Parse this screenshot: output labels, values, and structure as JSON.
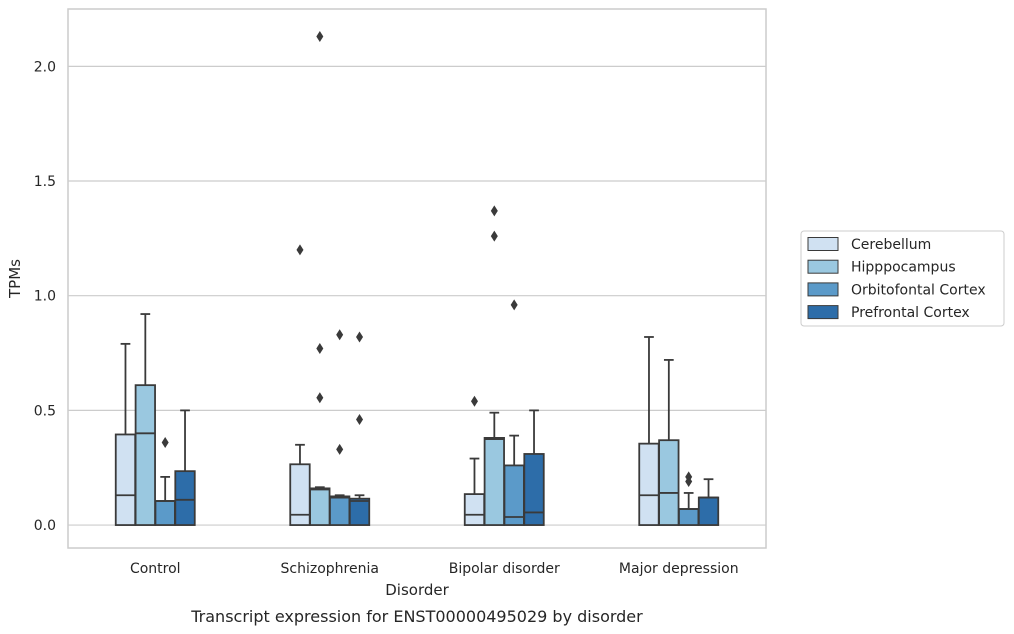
{
  "chart_data": {
    "type": "box",
    "caption": "Transcript expression for ENST00000495029 by disorder",
    "xlabel": "Disorder",
    "ylabel": "TPMs",
    "ylim": [
      -0.1,
      2.25
    ],
    "yticks": [
      0.0,
      0.5,
      1.0,
      1.5,
      2.0
    ],
    "ytick_labels": [
      "0.0",
      "0.5",
      "1.0",
      "1.5",
      "2.0"
    ],
    "grid": "horizontal",
    "legend_position": "right",
    "categories": [
      "Control",
      "Schizophrenia",
      "Bipolar disorder",
      "Major depression"
    ],
    "series": [
      {
        "name": "Cerebellum",
        "color": "#d0e1f2",
        "boxes": [
          {
            "q1": 0.0,
            "median": 0.13,
            "q3": 0.395,
            "whisker_low": 0.0,
            "whisker_high": 0.79,
            "outliers": []
          },
          {
            "q1": 0.0,
            "median": 0.045,
            "q3": 0.265,
            "whisker_low": 0.0,
            "whisker_high": 0.35,
            "outliers": [
              1.2
            ]
          },
          {
            "q1": 0.0,
            "median": 0.045,
            "q3": 0.135,
            "whisker_low": 0.0,
            "whisker_high": 0.29,
            "outliers": [
              0.54
            ]
          },
          {
            "q1": 0.0,
            "median": 0.13,
            "q3": 0.355,
            "whisker_low": 0.0,
            "whisker_high": 0.82,
            "outliers": []
          }
        ]
      },
      {
        "name": "Hipppocampus",
        "color": "#9ac8e0",
        "boxes": [
          {
            "q1": 0.0,
            "median": 0.4,
            "q3": 0.61,
            "whisker_low": 0.0,
            "whisker_high": 0.92,
            "outliers": []
          },
          {
            "q1": 0.0,
            "median": 0.155,
            "q3": 0.16,
            "whisker_low": 0.0,
            "whisker_high": 0.165,
            "outliers": [
              2.13,
              0.77,
              0.555
            ]
          },
          {
            "q1": 0.0,
            "median": 0.375,
            "q3": 0.38,
            "whisker_low": 0.0,
            "whisker_high": 0.49,
            "outliers": [
              1.37,
              1.26
            ]
          },
          {
            "q1": 0.0,
            "median": 0.14,
            "q3": 0.37,
            "whisker_low": 0.0,
            "whisker_high": 0.72,
            "outliers": []
          }
        ]
      },
      {
        "name": "Orbitofontal Cortex",
        "color": "#5b9ac9",
        "boxes": [
          {
            "q1": 0.0,
            "median": 0.105,
            "q3": 0.105,
            "whisker_low": 0.0,
            "whisker_high": 0.21,
            "outliers": [
              0.36
            ]
          },
          {
            "q1": 0.0,
            "median": 0.12,
            "q3": 0.125,
            "whisker_low": 0.0,
            "whisker_high": 0.13,
            "outliers": [
              0.83,
              0.33
            ]
          },
          {
            "q1": 0.0,
            "median": 0.035,
            "q3": 0.26,
            "whisker_low": 0.0,
            "whisker_high": 0.39,
            "outliers": [
              0.96
            ]
          },
          {
            "q1": 0.0,
            "median": 0.07,
            "q3": 0.07,
            "whisker_low": 0.0,
            "whisker_high": 0.14,
            "outliers": [
              0.21,
              0.19
            ]
          }
        ]
      },
      {
        "name": "Prefrontal Cortex",
        "color": "#2d6da9",
        "boxes": [
          {
            "q1": 0.0,
            "median": 0.11,
            "q3": 0.235,
            "whisker_low": 0.0,
            "whisker_high": 0.5,
            "outliers": []
          },
          {
            "q1": 0.0,
            "median": 0.105,
            "q3": 0.115,
            "whisker_low": 0.0,
            "whisker_high": 0.13,
            "outliers": [
              0.82,
              0.46
            ]
          },
          {
            "q1": 0.0,
            "median": 0.055,
            "q3": 0.31,
            "whisker_low": 0.0,
            "whisker_high": 0.5,
            "outliers": []
          },
          {
            "q1": 0.0,
            "median": 0.12,
            "q3": 0.12,
            "whisker_low": 0.0,
            "whisker_high": 0.2,
            "outliers": []
          }
        ]
      }
    ]
  }
}
